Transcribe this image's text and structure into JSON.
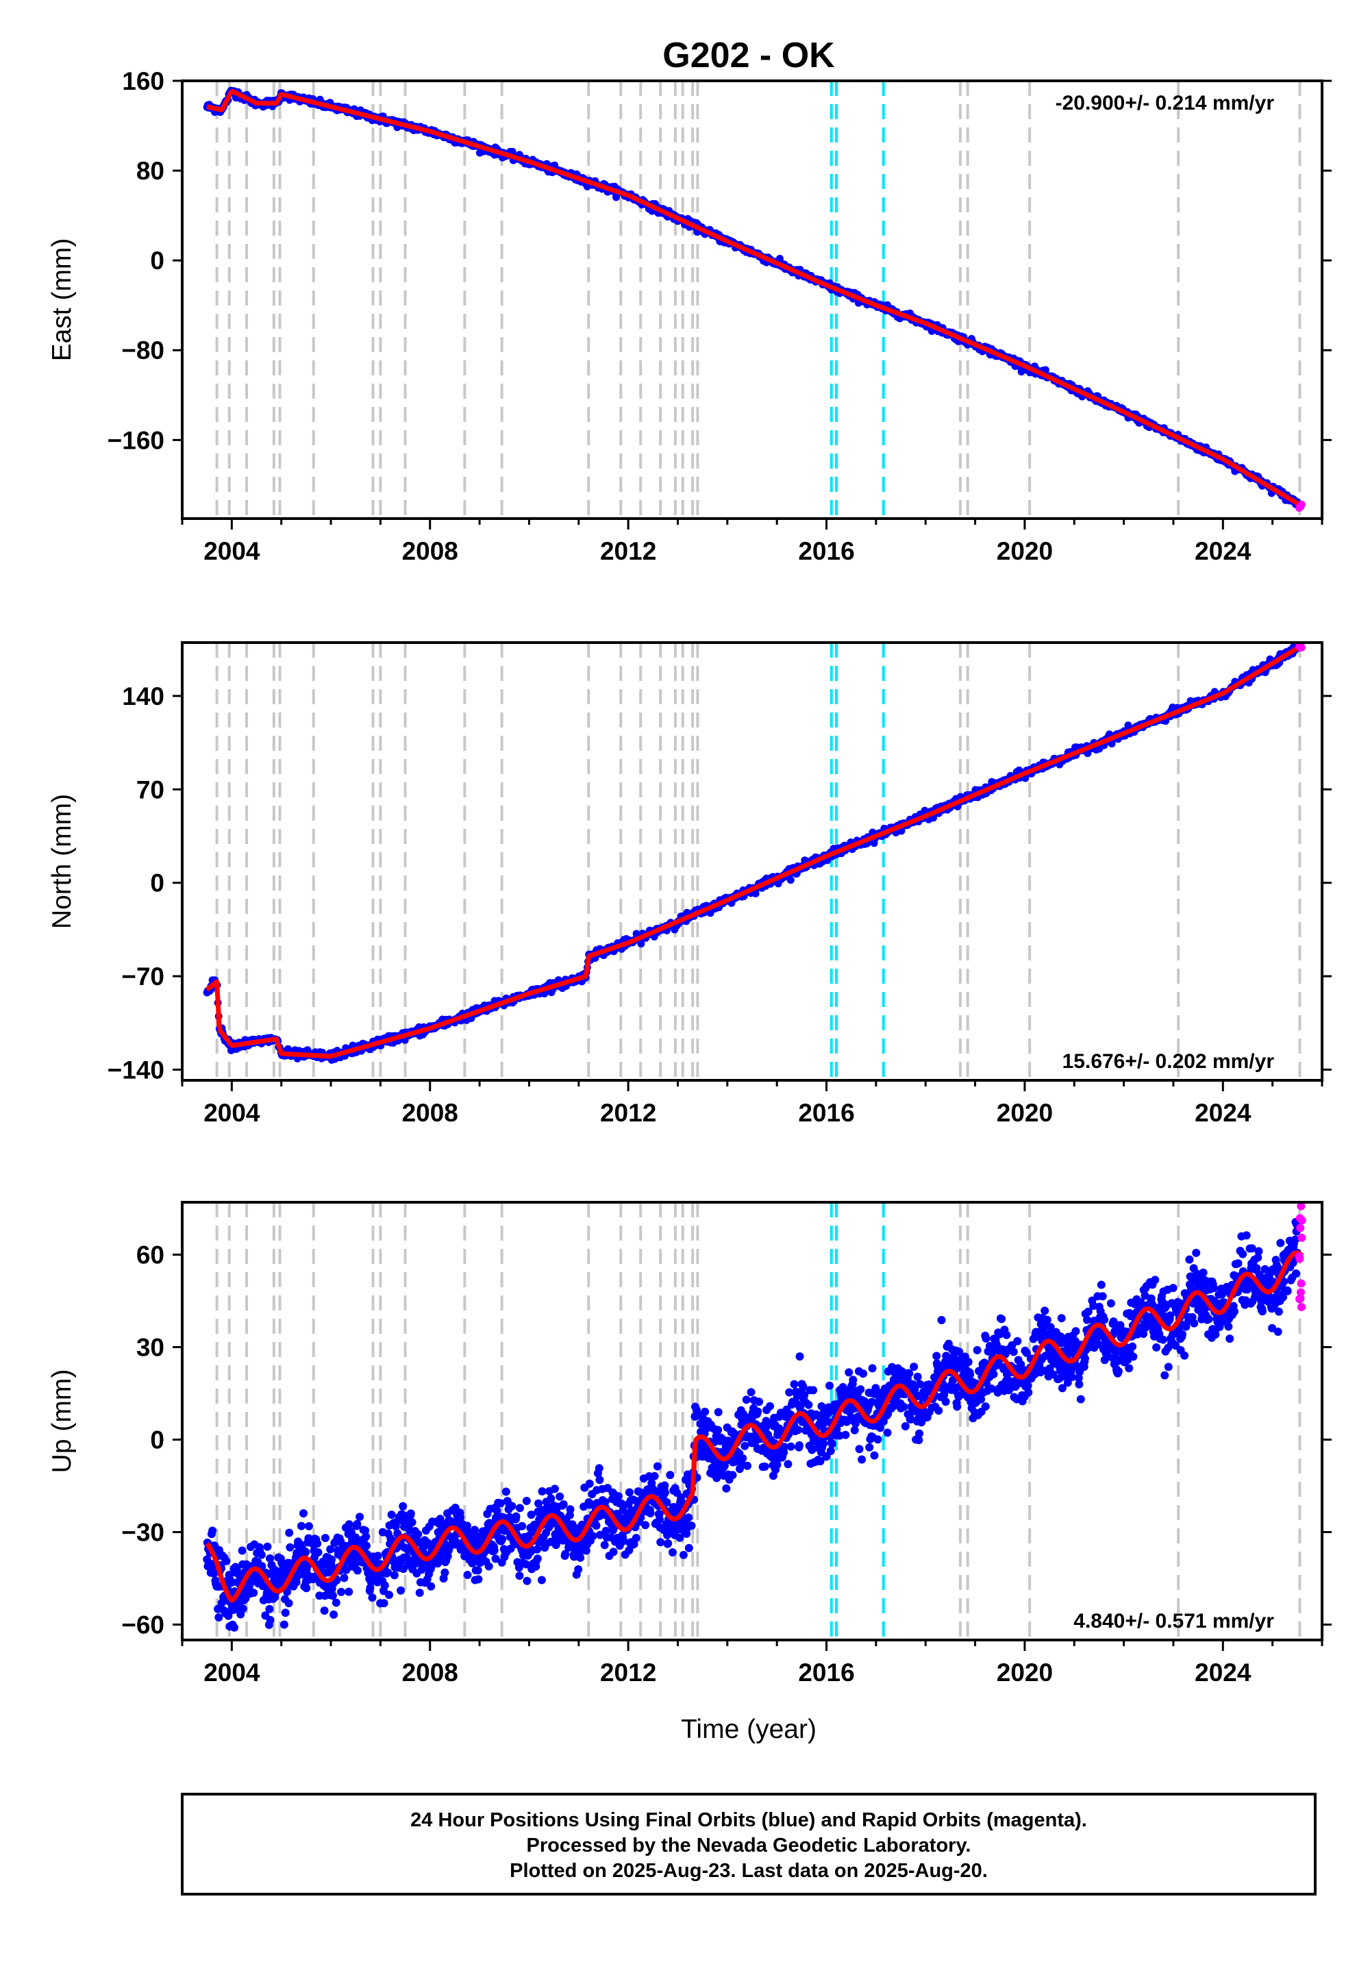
{
  "title": "G202 - OK",
  "xlabel": "Time (year)",
  "footer": {
    "line1": "24 Hour Positions Using Final Orbits (blue) and Rapid Orbits (magenta).",
    "line2": "Processed by the Nevada Geodetic Laboratory.",
    "line3": "Plotted on 2025-Aug-23. Last data on 2025-Aug-20."
  },
  "colors": {
    "final_orbits": "#0000ff",
    "rapid_orbits": "#ff00ff",
    "model_fit": "#ff0000",
    "event_lines": "#c8c8c8",
    "equipment_change_lines": "#00e5ff"
  },
  "chart_data": [
    {
      "type": "scatter",
      "ylabel": "East (mm)",
      "rate": "-20.900+/- 0.214 mm/yr",
      "xlim": [
        2003.0,
        2026.0
      ],
      "ylim": [
        -230,
        160
      ],
      "xticks": [
        "2004",
        "2008",
        "2012",
        "2016",
        "2020",
        "2024"
      ],
      "yticks": [
        "160",
        "80",
        "0",
        "−80",
        "−160"
      ],
      "legend_position": "top-right",
      "series": [
        {
          "role": "model",
          "x": [
            2003.5,
            2003.8,
            2004.0,
            2004.5,
            2004.9,
            2005.0,
            2006.0,
            2008.0,
            2010.0,
            2012.0,
            2014.0,
            2016.0,
            2017.0,
            2018.0,
            2020.0,
            2022.0,
            2024.0,
            2025.6
          ],
          "y": [
            137,
            134,
            151,
            140,
            140,
            148,
            137,
            115,
            88,
            58,
            17,
            -22,
            -40,
            -56,
            -94,
            -135,
            -177,
            -219
          ]
        }
      ]
    },
    {
      "type": "scatter",
      "ylabel": "North (mm)",
      "rate": "15.676+/- 0.202 mm/yr",
      "xlim": [
        2003.0,
        2026.0
      ],
      "ylim": [
        -148,
        180
      ],
      "xticks": [
        "2004",
        "2008",
        "2012",
        "2016",
        "2020",
        "2024"
      ],
      "yticks": [
        "140",
        "70",
        "0",
        "−70",
        "−140"
      ],
      "legend_position": "bottom-right",
      "series": [
        {
          "role": "model",
          "x": [
            2003.5,
            2003.7,
            2003.75,
            2004.0,
            2004.9,
            2005.0,
            2006.0,
            2008.0,
            2010.0,
            2011.15,
            2011.2,
            2012.0,
            2014.0,
            2016.0,
            2018.0,
            2020.0,
            2022.0,
            2024.0,
            2025.6
          ],
          "y": [
            -80,
            -74,
            -110,
            -122,
            -117,
            -128,
            -130,
            -109,
            -83,
            -70,
            -55,
            -45,
            -13,
            20,
            50,
            82,
            112,
            142,
            178
          ]
        }
      ]
    },
    {
      "type": "scatter",
      "ylabel": "Up (mm)",
      "rate": "4.840+/- 0.571 mm/yr",
      "xlim": [
        2003.0,
        2026.0
      ],
      "ylim": [
        -65,
        77
      ],
      "xticks": [
        "2004",
        "2008",
        "2012",
        "2016",
        "2020",
        "2024"
      ],
      "yticks": [
        "60",
        "30",
        "0",
        "−30",
        "−60"
      ],
      "legend_position": "bottom-right",
      "series": [
        {
          "role": "model",
          "annual_amplitude_mm": 4.5,
          "x": [
            2003.5,
            2003.7,
            2004.0,
            2008.0,
            2011.0,
            2013.3,
            2013.35,
            2016.0,
            2020.0,
            2024.0,
            2025.6
          ],
          "y": [
            -38,
            -40,
            -48,
            -34,
            -28,
            -20,
            -4,
            6,
            25,
            46,
            57
          ]
        }
      ]
    }
  ],
  "events": {
    "gray": [
      2003.7,
      2003.95,
      2004.3,
      2004.85,
      2004.97,
      2005.65,
      2006.85,
      2007.0,
      2007.5,
      2008.7,
      2009.45,
      2011.2,
      2011.85,
      2012.25,
      2012.65,
      2012.95,
      2013.1,
      2013.3,
      2013.4,
      2018.7,
      2018.85,
      2020.1,
      2023.1,
      2025.55
    ],
    "cyan": [
      2016.1,
      2016.2,
      2017.15
    ]
  }
}
